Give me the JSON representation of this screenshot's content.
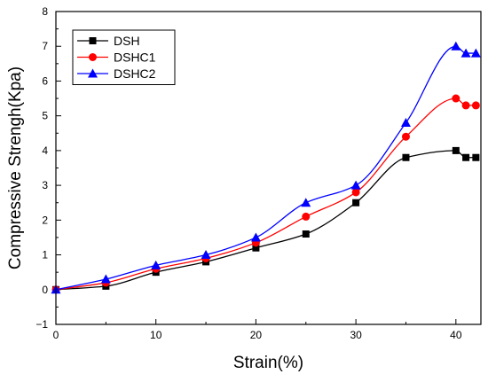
{
  "chart_data": {
    "type": "line",
    "title": "",
    "xlabel": "Strain(%)",
    "ylabel": "Compressive Strengh(Kpa)",
    "xlim": [
      0,
      42.5
    ],
    "ylim": [
      -1,
      8
    ],
    "xticks": [
      0,
      10,
      20,
      30,
      40
    ],
    "yticks": [
      -1,
      0,
      1,
      2,
      3,
      4,
      5,
      6,
      7,
      8
    ],
    "grid": false,
    "legend_position": "top-left",
    "series": [
      {
        "name": "DSH",
        "color": "#000000",
        "marker": "square",
        "x": [
          0,
          5,
          10,
          15,
          20,
          25,
          30,
          35,
          40,
          41,
          42
        ],
        "y": [
          0,
          0.1,
          0.5,
          0.8,
          1.2,
          1.6,
          2.5,
          3.8,
          4.0,
          3.8,
          3.8
        ]
      },
      {
        "name": "DSHC1",
        "color": "#ff0000",
        "marker": "circle",
        "x": [
          0,
          5,
          10,
          15,
          20,
          25,
          30,
          35,
          40,
          41,
          42
        ],
        "y": [
          0,
          0.2,
          0.6,
          0.9,
          1.35,
          2.1,
          2.8,
          4.4,
          5.5,
          5.3,
          5.3
        ]
      },
      {
        "name": "DSHC2",
        "color": "#0000ff",
        "marker": "triangle",
        "x": [
          0,
          5,
          10,
          15,
          20,
          25,
          30,
          35,
          40,
          41,
          42
        ],
        "y": [
          0,
          0.3,
          0.7,
          1.0,
          1.5,
          2.5,
          3.0,
          4.8,
          7.0,
          6.8,
          6.8
        ]
      }
    ]
  }
}
